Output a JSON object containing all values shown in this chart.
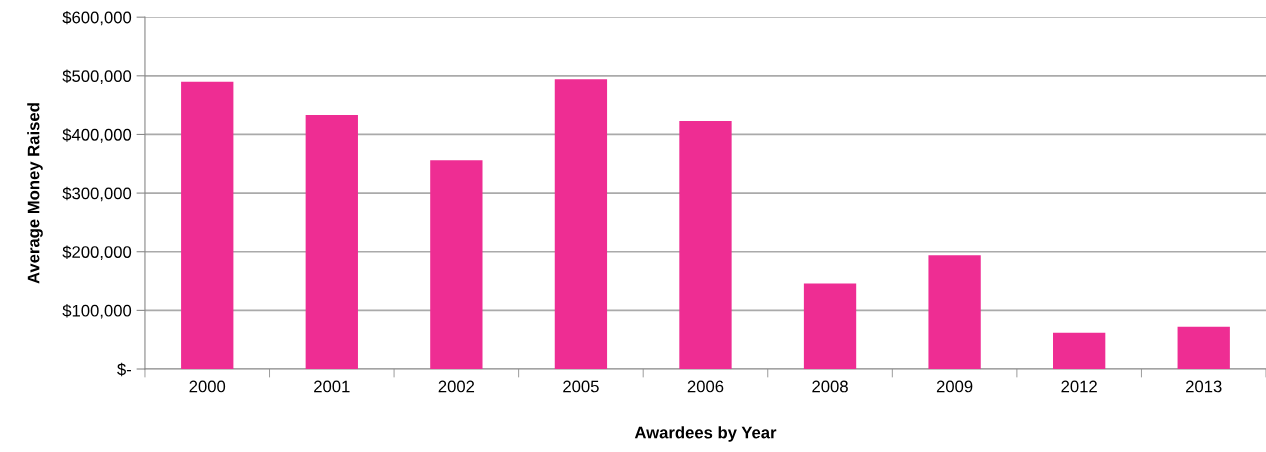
{
  "chart_data": {
    "type": "bar",
    "xlabel": "Awardees by Year",
    "ylabel": "Average Money Raised",
    "categories": [
      "2000",
      "2001",
      "2002",
      "2005",
      "2006",
      "2008",
      "2009",
      "2012",
      "2013"
    ],
    "values": [
      490000,
      433000,
      356000,
      494000,
      423000,
      146000,
      194000,
      62000,
      72000
    ],
    "color": "#ee2d93",
    "ylim": [
      0,
      600000
    ],
    "yticks": [
      {
        "value": 0,
        "label": "$-"
      },
      {
        "value": 100000,
        "label": "$100,000"
      },
      {
        "value": 200000,
        "label": "$200,000"
      },
      {
        "value": 300000,
        "label": "$300,000"
      },
      {
        "value": 400000,
        "label": "$400,000"
      },
      {
        "value": 500000,
        "label": "$500,000"
      },
      {
        "value": 600000,
        "label": "$600,000"
      }
    ],
    "grid": "y"
  }
}
